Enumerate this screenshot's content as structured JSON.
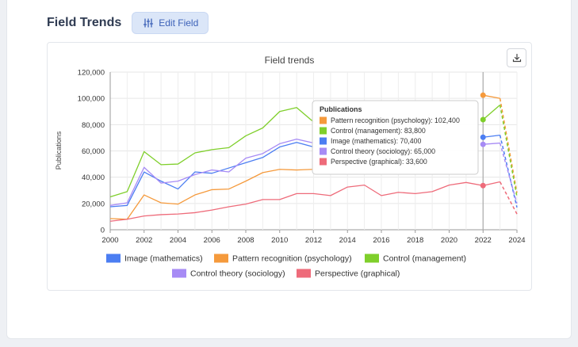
{
  "header": {
    "title": "Field Trends",
    "edit_label": "Edit Field"
  },
  "colors": {
    "Image (mathematics)": "#4c7ef2",
    "Pattern recognition (psychology)": "#f59a3c",
    "Control (management)": "#7fcf2b",
    "Control theory (sociology)": "#a78bf5",
    "Perspective (graphical)": "#ee6b7a"
  },
  "chart_data": {
    "type": "line",
    "title": "Field trends",
    "xlabel": "",
    "ylabel": "Publications",
    "xlim": [
      2000,
      2024
    ],
    "ylim": [
      0,
      120000
    ],
    "x_ticks": [
      "2000",
      "2002",
      "2004",
      "2006",
      "2008",
      "2010",
      "2012",
      "2014",
      "2016",
      "2018",
      "2020",
      "2022",
      "2024"
    ],
    "y_ticks": [
      "0",
      "20,000",
      "40,000",
      "60,000",
      "80,000",
      "100,000",
      "120,000"
    ],
    "x": [
      2000,
      2001,
      2002,
      2003,
      2004,
      2005,
      2006,
      2007,
      2008,
      2009,
      2010,
      2011,
      2012,
      2013,
      2014,
      2015,
      2016,
      2017,
      2018,
      2019,
      2020,
      2021,
      2022,
      2023,
      2024
    ],
    "dashed_from": 2023,
    "series": [
      {
        "name": "Image (mathematics)",
        "values": [
          17500,
          18500,
          44000,
          37000,
          31000,
          44000,
          43000,
          47000,
          51000,
          55000,
          63000,
          66500,
          63000,
          null,
          null,
          null,
          null,
          null,
          null,
          null,
          null,
          null,
          70400,
          72000,
          17000
        ]
      },
      {
        "name": "Pattern recognition (psychology)",
        "values": [
          8500,
          8000,
          26500,
          20500,
          19500,
          26500,
          30500,
          31000,
          37000,
          43500,
          46000,
          45500,
          46000,
          null,
          null,
          null,
          null,
          null,
          null,
          null,
          null,
          null,
          102400,
          100000,
          28000
        ]
      },
      {
        "name": "Control (management)",
        "values": [
          25000,
          29000,
          59500,
          49500,
          50000,
          58500,
          61000,
          62500,
          71500,
          77500,
          90000,
          93000,
          82000,
          null,
          null,
          null,
          null,
          null,
          null,
          null,
          null,
          null,
          83800,
          95000,
          25000
        ]
      },
      {
        "name": "Control theory (sociology)",
        "values": [
          18500,
          20500,
          47500,
          35500,
          37000,
          42000,
          45500,
          44000,
          54500,
          58000,
          65500,
          69000,
          66000,
          null,
          null,
          null,
          null,
          null,
          null,
          null,
          null,
          null,
          65000,
          66000,
          20000
        ]
      },
      {
        "name": "Perspective (graphical)",
        "values": [
          6500,
          8000,
          10500,
          11500,
          12000,
          13000,
          15000,
          17500,
          19500,
          23000,
          23000,
          27500,
          27500,
          26000,
          32500,
          34000,
          26000,
          28500,
          27500,
          29000,
          34000,
          36000,
          33600,
          36500,
          12000
        ]
      }
    ],
    "legend_position": "bottom",
    "tooltip": {
      "title": "Publications",
      "year": 2022,
      "rows": [
        {
          "name": "Pattern recognition (psychology)",
          "value": "102,400"
        },
        {
          "name": "Control (management)",
          "value": "83,800"
        },
        {
          "name": "Image (mathematics)",
          "value": "70,400"
        },
        {
          "name": "Control theory (sociology)",
          "value": "65,000"
        },
        {
          "name": "Perspective (graphical)",
          "value": "33,600"
        }
      ]
    }
  }
}
